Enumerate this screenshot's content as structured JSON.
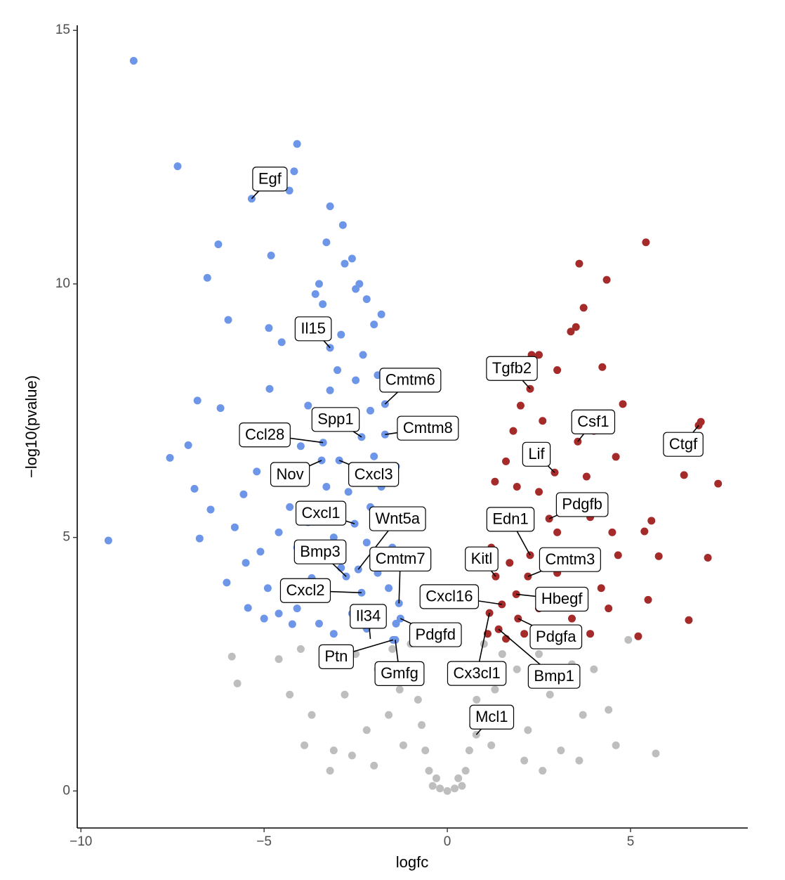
{
  "chart_data": {
    "type": "scatter",
    "x_label": "logfc",
    "y_label": "−log10(pvalue)",
    "xlim": [
      -10.1,
      8.2
    ],
    "ylim": [
      -0.73,
      15.1
    ],
    "xticks": [
      {
        "value": -10,
        "label": "−10"
      },
      {
        "value": -5,
        "label": "−5"
      },
      0,
      5
    ],
    "yticks": [
      0,
      5,
      10,
      15
    ],
    "grid": false,
    "series": [
      {
        "color": "#bebebe",
        "x": [
          -5.88,
          -5.73,
          5.69,
          4.94,
          0.79,
          0,
          -0.2,
          0.2,
          -0.4,
          0.4,
          -0.5,
          0.5,
          -0.6,
          0.6,
          -0.7,
          0.7,
          -0.8,
          0.8,
          -0.9,
          0.9,
          -1.0,
          1.0,
          -1.3,
          1.3,
          -1.6,
          1.6,
          -1.9,
          1.9,
          -2.2,
          2.2,
          -2.5,
          2.5,
          -2.8,
          2.8,
          -3.1,
          3.1,
          -3.4,
          3.4,
          -3.7,
          3.7,
          -4.0,
          4.0,
          -4.3,
          4.4,
          -3.2,
          3.6,
          -1.2,
          1.2,
          -2.0,
          2.1,
          -4.6,
          4.6,
          -2.6,
          2.6,
          -1.5,
          1.5,
          -3.9,
          3.2,
          -0.3,
          0.3
        ],
        "values": [
          2.65,
          2.12,
          0.74,
          2.98,
          1.11,
          0,
          0.05,
          0.05,
          0.1,
          0.1,
          0.4,
          0.4,
          0.8,
          0.8,
          1.3,
          1.3,
          1.8,
          1.8,
          2.4,
          2.4,
          2.9,
          2.9,
          2.0,
          2.0,
          1.5,
          1.5,
          2.4,
          2.4,
          1.2,
          1.2,
          2.7,
          2.7,
          1.9,
          1.9,
          0.8,
          0.8,
          2.5,
          2.5,
          1.5,
          1.5,
          2.8,
          2.4,
          1.9,
          1.6,
          0.4,
          0.6,
          0.9,
          0.9,
          0.5,
          0.6,
          2.6,
          0.9,
          0.7,
          0.4,
          2.8,
          2.7,
          0.9,
          2.9,
          0.25,
          0.25
        ]
      },
      {
        "color": "#6d95e8",
        "x": [
          -8.56,
          -7.36,
          -4.1,
          -4.18,
          -4.31,
          -5.34,
          -3.2,
          -2.85,
          -3.3,
          -6.25,
          -4.81,
          -6.55,
          -5.98,
          -9.25,
          -7.57,
          -7.07,
          -6.82,
          -6.19,
          -6.9,
          -6.76,
          -6.02,
          -5.44,
          -4.85,
          -4.87,
          -4.52,
          -4.23,
          -6.46,
          -5.56,
          -5.1,
          -3.2,
          -2.6,
          -2.5,
          -2.2,
          -3.4,
          -3.6,
          -2.0,
          -1.8,
          -2.9,
          -3.0,
          -2.3,
          -1.7,
          -2.34,
          -1.7,
          -3.39,
          -3.43,
          -2.95,
          -2.53,
          -2.43,
          -2.76,
          -1.32,
          -2.34,
          -1.28,
          -1.48,
          -1.42,
          -3.8,
          -4.0,
          -4.3,
          -4.6,
          -3.7,
          -4.1,
          -3.5,
          -3.1,
          -2.6,
          -2.2,
          -1.9,
          -1.6,
          -1.5,
          -1.6,
          -1.8,
          -1.4,
          -2.0,
          -2.1,
          -2.7,
          -3.1,
          -3.4,
          -2.9,
          -2.2,
          -1.9,
          -1.4,
          -2.5,
          -2.1,
          -2.7,
          -3.2,
          -1.9,
          -2.0,
          -5.2,
          -5.8,
          -5.5,
          -4.9,
          -4.6,
          -5.0,
          -3.3,
          -3.8,
          -4.1,
          -2.4,
          -3.5,
          -2.8
        ],
        "values": [
          14.4,
          12.32,
          12.76,
          12.22,
          11.84,
          11.68,
          11.53,
          11.16,
          10.82,
          10.78,
          10.56,
          10.12,
          9.29,
          4.94,
          6.57,
          6.82,
          7.7,
          7.55,
          5.96,
          4.98,
          4.11,
          3.61,
          7.93,
          9.13,
          8.85,
          3.29,
          5.55,
          5.85,
          4.72,
          8.74,
          10.5,
          9.9,
          9.7,
          9.6,
          9.8,
          9.2,
          9.4,
          9.0,
          8.3,
          8.6,
          7.63,
          6.98,
          7.03,
          6.87,
          6.52,
          6.52,
          5.27,
          4.37,
          4.23,
          3.7,
          3.91,
          3.4,
          2.98,
          2.98,
          7.6,
          6.8,
          5.6,
          5.1,
          4.2,
          3.6,
          3.3,
          3.1,
          3.5,
          3.2,
          3.6,
          4.0,
          4.8,
          5.5,
          6.0,
          6.4,
          6.6,
          5.6,
          5.9,
          5.0,
          4.6,
          4.4,
          4.9,
          4.3,
          3.3,
          8.1,
          7.5,
          7.3,
          7.9,
          8.2,
          6.4,
          6.3,
          5.2,
          4.5,
          4.0,
          3.5,
          3.4,
          6.0,
          5.3,
          4.8,
          10.0,
          10.0,
          10.4
        ]
      },
      {
        "color": "#a52a2a",
        "x": [
          5.42,
          3.6,
          4.35,
          3.72,
          3.51,
          3.37,
          4.23,
          4.79,
          6.92,
          7.39,
          6.46,
          7.11,
          6.59,
          5.77,
          5.57,
          5.38,
          5.48,
          5.21,
          4.66,
          4.6,
          2.26,
          3.56,
          6.86,
          2.93,
          2.78,
          2.26,
          1.32,
          2.2,
          1.88,
          1.93,
          1.15,
          1.4,
          1.49,
          2.3,
          2.5,
          3.0,
          2.0,
          2.6,
          1.8,
          2.2,
          1.6,
          1.9,
          1.3,
          1.4,
          2.0,
          2.5,
          3.0,
          3.3,
          3.8,
          4.0,
          3.9,
          3.5,
          3.0,
          2.5,
          2.9,
          3.4,
          3.9,
          4.2,
          1.2,
          1.7,
          1.1,
          1.6,
          2.1,
          4.4,
          4.5
        ],
        "values": [
          10.82,
          10.4,
          10.08,
          9.53,
          9.15,
          9.06,
          8.36,
          7.63,
          7.28,
          6.06,
          6.23,
          4.6,
          3.37,
          4.63,
          5.33,
          5.12,
          3.77,
          3.05,
          4.65,
          6.59,
          7.93,
          6.89,
          7.21,
          6.28,
          5.37,
          4.65,
          4.23,
          4.23,
          3.88,
          3.4,
          3.51,
          3.19,
          3.68,
          8.6,
          8.6,
          8.3,
          7.6,
          7.3,
          7.1,
          6.8,
          6.5,
          6.0,
          6.1,
          5.5,
          5.3,
          5.9,
          5.1,
          5.6,
          6.2,
          7.1,
          5.4,
          4.6,
          4.3,
          3.6,
          3.2,
          3.4,
          3.1,
          4.0,
          4.8,
          4.5,
          3.1,
          3.0,
          3.1,
          3.6,
          5.1
        ]
      }
    ],
    "annotations": [
      {
        "text": "Egf",
        "x": -5.34,
        "y": 11.68
      },
      {
        "text": "Il15",
        "x": -3.2,
        "y": 8.74
      },
      {
        "text": "Cmtm6",
        "x": -1.7,
        "y": 7.63
      },
      {
        "text": "Spp1",
        "x": -2.34,
        "y": 6.98
      },
      {
        "text": "Cmtm8",
        "x": -1.7,
        "y": 7.03
      },
      {
        "text": "Ccl28",
        "x": -3.39,
        "y": 6.87
      },
      {
        "text": "Nov",
        "x": -3.43,
        "y": 6.52
      },
      {
        "text": "Cxcl3",
        "x": -2.95,
        "y": 6.52
      },
      {
        "text": "Cxcl1",
        "x": -2.53,
        "y": 5.27
      },
      {
        "text": "Wnt5a",
        "x": -2.43,
        "y": 4.37
      },
      {
        "text": "Bmp3",
        "x": -2.76,
        "y": 4.23
      },
      {
        "text": "Cmtm7",
        "x": -1.32,
        "y": 3.7
      },
      {
        "text": "Cxcl2",
        "x": -2.34,
        "y": 3.91
      },
      {
        "text": "Il34",
        "x": -2.1,
        "y": 3.0
      },
      {
        "text": "Pdgfd",
        "x": -1.28,
        "y": 3.4
      },
      {
        "text": "Ptn",
        "x": -1.48,
        "y": 2.98
      },
      {
        "text": "Gmfg",
        "x": -1.42,
        "y": 2.98
      },
      {
        "text": "Cx3cl1",
        "x": 1.15,
        "y": 3.51
      },
      {
        "text": "Bmp1",
        "x": 1.4,
        "y": 3.19
      },
      {
        "text": "Mcl1",
        "x": 0.79,
        "y": 1.11
      },
      {
        "text": "Cxcl16",
        "x": 1.49,
        "y": 3.68
      },
      {
        "text": "Kitl",
        "x": 1.32,
        "y": 4.23
      },
      {
        "text": "Cmtm3",
        "x": 2.2,
        "y": 4.23
      },
      {
        "text": "Hbegf",
        "x": 1.88,
        "y": 3.88
      },
      {
        "text": "Pdgfa",
        "x": 1.93,
        "y": 3.4
      },
      {
        "text": "Edn1",
        "x": 2.26,
        "y": 4.65
      },
      {
        "text": "Pdgfb",
        "x": 2.78,
        "y": 5.37
      },
      {
        "text": "Lif",
        "x": 2.93,
        "y": 6.28
      },
      {
        "text": "Tgfb2",
        "x": 2.26,
        "y": 7.93
      },
      {
        "text": "Csf1",
        "x": 3.56,
        "y": 6.89
      },
      {
        "text": "Ctgf",
        "x": 6.86,
        "y": 7.21
      }
    ]
  }
}
